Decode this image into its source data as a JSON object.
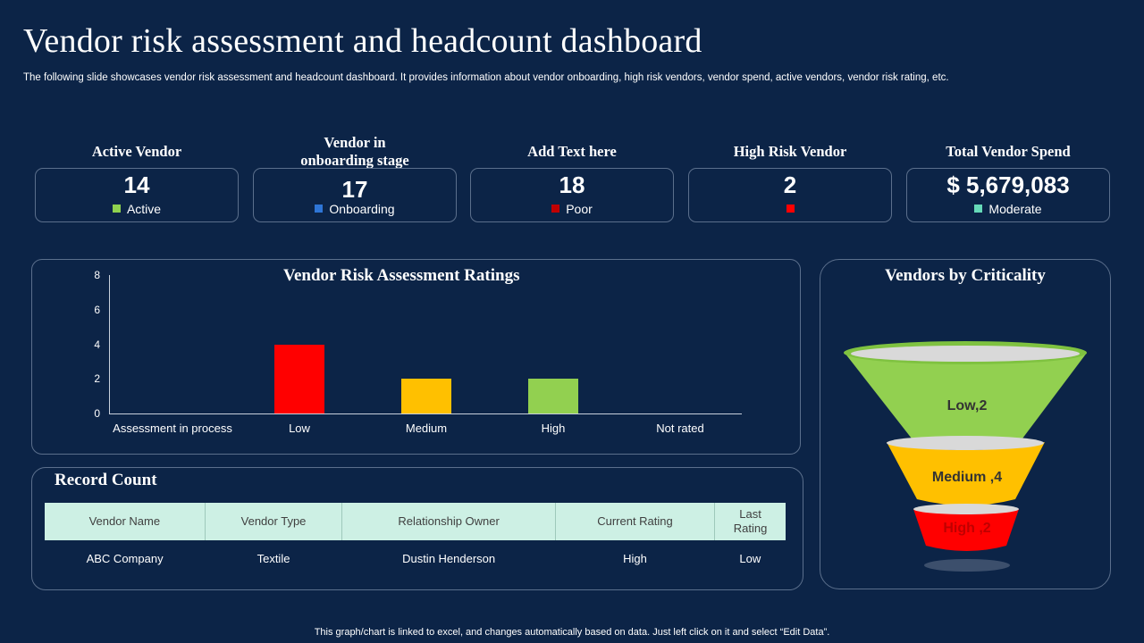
{
  "page": {
    "title": "Vendor risk assessment and headcount dashboard",
    "subtitle": "The following slide showcases vendor risk assessment and headcount dashboard. It provides information about vendor onboarding, high risk vendors, vendor spend, active vendors, vendor risk rating, etc.",
    "footer": "This graph/chart is linked to excel,  and changes automatically based on data. Just left click on it and select “Edit Data”."
  },
  "kpis": [
    {
      "label": "Active Vendor",
      "value": "14",
      "legend": "Active",
      "color": "#8fd14f"
    },
    {
      "label": "Vendor in\nonboarding stage",
      "value": "17",
      "legend": "Onboarding",
      "color": "#2e75d6"
    },
    {
      "label": "Add Text here",
      "value": "18",
      "legend": "Poor",
      "color": "#c00000"
    },
    {
      "label": "High Risk Vendor",
      "value": "2",
      "legend": "",
      "color": "#ff0000"
    },
    {
      "label": "Total Vendor Spend",
      "value": "$ 5,679,083",
      "legend": "Moderate",
      "color": "#66d9b8"
    }
  ],
  "risk_panel": {
    "title": "Vendor Risk Assessment Ratings"
  },
  "chart_data": {
    "type": "bar",
    "title": "Vendor Risk Assessment Ratings",
    "categories": [
      "Assessment in process",
      "Low",
      "Medium",
      "High",
      "Not rated"
    ],
    "values": [
      0,
      4,
      2,
      2,
      0
    ],
    "bar_colors": [
      "#000000",
      "#ff0000",
      "#ffc000",
      "#92d050",
      "#000000"
    ],
    "ylim": [
      0,
      8
    ],
    "yticks": [
      "0",
      "2",
      "4",
      "6",
      "8"
    ],
    "grid": false
  },
  "criticality": {
    "title": "Vendors by Criticality",
    "levels": [
      {
        "label": "Low,2",
        "color": "#92d050"
      },
      {
        "label": "Medium ,4",
        "color": "#ffc000"
      },
      {
        "label": "High ,2",
        "color": "#ff0000"
      }
    ]
  },
  "record": {
    "title": "Record Count",
    "headers": [
      "Vendor Name",
      "Vendor Type",
      "Relationship Owner",
      "Current Rating",
      "Last\nRating"
    ],
    "rows": [
      [
        "ABC Company",
        "Textile",
        "Dustin Henderson",
        "High",
        "Low"
      ]
    ]
  }
}
